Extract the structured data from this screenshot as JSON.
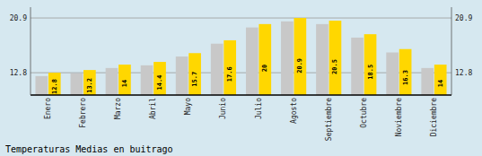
{
  "chart_data": {
    "type": "bar",
    "title": "Temperaturas Medias en buitrago",
    "categories": [
      "Enero",
      "Febrero",
      "Marzo",
      "Abril",
      "Mayo",
      "Junio",
      "Julio",
      "Agosto",
      "Septiembre",
      "Octubre",
      "Noviembre",
      "Diciembre"
    ],
    "series": [
      {
        "color": "#C8C8C8",
        "values": [
          12.3,
          12.7,
          13.5,
          13.9,
          15.2,
          17.1,
          19.5,
          20.4,
          20.0,
          18.0,
          15.8,
          13.5
        ]
      },
      {
        "color": "#FFD700",
        "values": [
          12.8,
          13.2,
          14.0,
          14.4,
          15.7,
          17.6,
          20.0,
          20.9,
          20.5,
          18.5,
          16.3,
          14.0
        ],
        "data_labels": true
      }
    ],
    "ylim": [
      9.5,
      22.5
    ],
    "yticks": [
      12.8,
      20.9
    ],
    "y2lim": [
      9.5,
      22.5
    ],
    "y2ticks": [
      12.8,
      20.9
    ],
    "grid": true
  }
}
